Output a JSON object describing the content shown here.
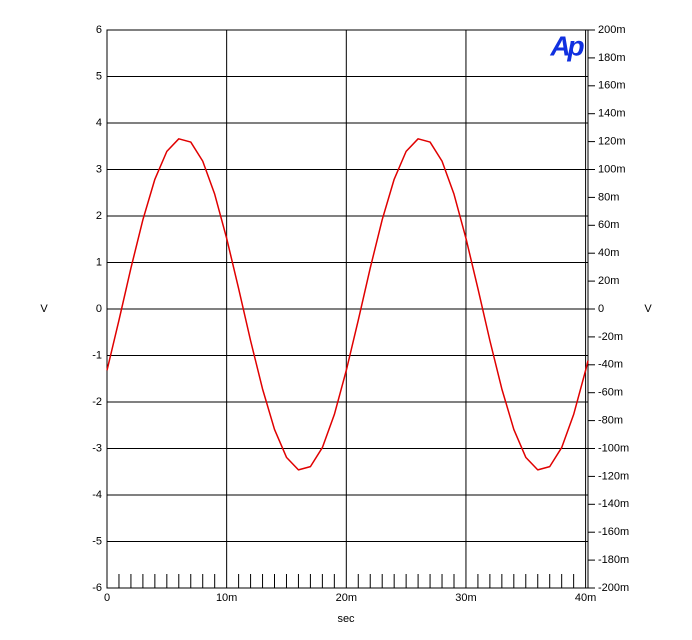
{
  "chart_data": {
    "type": "line",
    "logo": "Ap",
    "ylabel": "V",
    "y2label": "V",
    "xlabel": "sec",
    "x": [
      0,
      0.001,
      0.002,
      0.003,
      0.004,
      0.005,
      0.006,
      0.007,
      0.008,
      0.009,
      0.01,
      0.011,
      0.012,
      0.013,
      0.014,
      0.015,
      0.016,
      0.017,
      0.018,
      0.019,
      0.02,
      0.021,
      0.022,
      0.023,
      0.024,
      0.025,
      0.026,
      0.027,
      0.028,
      0.029,
      0.03,
      0.031,
      0.032,
      0.033,
      0.034,
      0.035,
      0.036,
      0.037,
      0.038,
      0.039,
      0.04,
      0.0402
    ],
    "series": [
      {
        "color": "#e00000",
        "values": [
          -1.32,
          -0.24,
          0.88,
          1.92,
          2.79,
          3.39,
          3.66,
          3.59,
          3.18,
          2.47,
          1.52,
          0.44,
          -0.68,
          -1.72,
          -2.59,
          -3.19,
          -3.46,
          -3.39,
          -2.98,
          -2.27,
          -1.32,
          -0.24,
          0.88,
          1.92,
          2.79,
          3.39,
          3.66,
          3.59,
          3.18,
          2.47,
          1.52,
          0.44,
          -0.68,
          -1.72,
          -2.59,
          -3.19,
          -3.46,
          -3.39,
          -2.98,
          -2.27,
          -1.32,
          -1.11
        ]
      }
    ],
    "xlim": [
      0,
      0.0402
    ],
    "xticks": [
      0,
      {
        "value": 0.01,
        "label": "10m"
      },
      {
        "value": 0.02,
        "label": "20m"
      },
      {
        "value": 0.03,
        "label": "30m"
      },
      {
        "value": 0.04,
        "label": "40m"
      }
    ],
    "ylim": [
      -6,
      6
    ],
    "yticks": [
      -6,
      -5,
      -4,
      -3,
      -2,
      -1,
      0,
      1,
      2,
      3,
      4,
      5,
      6
    ],
    "y2lim": [
      -0.2,
      0.2
    ],
    "y2ticks": [
      {
        "value": -0.2,
        "label": "-200m"
      },
      {
        "value": -0.18,
        "label": "-180m"
      },
      {
        "value": -0.16,
        "label": "-160m"
      },
      {
        "value": -0.14,
        "label": "-140m"
      },
      {
        "value": -0.12,
        "label": "-120m"
      },
      {
        "value": -0.1,
        "label": "-100m"
      },
      {
        "value": -0.08,
        "label": "-80m"
      },
      {
        "value": -0.06,
        "label": "-60m"
      },
      {
        "value": -0.04,
        "label": "-40m"
      },
      {
        "value": -0.02,
        "label": "-20m"
      },
      0,
      {
        "value": 0.02,
        "label": "20m"
      },
      {
        "value": 0.04,
        "label": "40m"
      },
      {
        "value": 0.06,
        "label": "60m"
      },
      {
        "value": 0.08,
        "label": "80m"
      },
      {
        "value": 0.1,
        "label": "100m"
      },
      {
        "value": 0.12,
        "label": "120m"
      },
      {
        "value": 0.14,
        "label": "140m"
      },
      {
        "value": 0.16,
        "label": "160m"
      },
      {
        "value": 0.18,
        "label": "180m"
      },
      {
        "value": 0.2,
        "label": "200m"
      }
    ],
    "grid": true
  }
}
